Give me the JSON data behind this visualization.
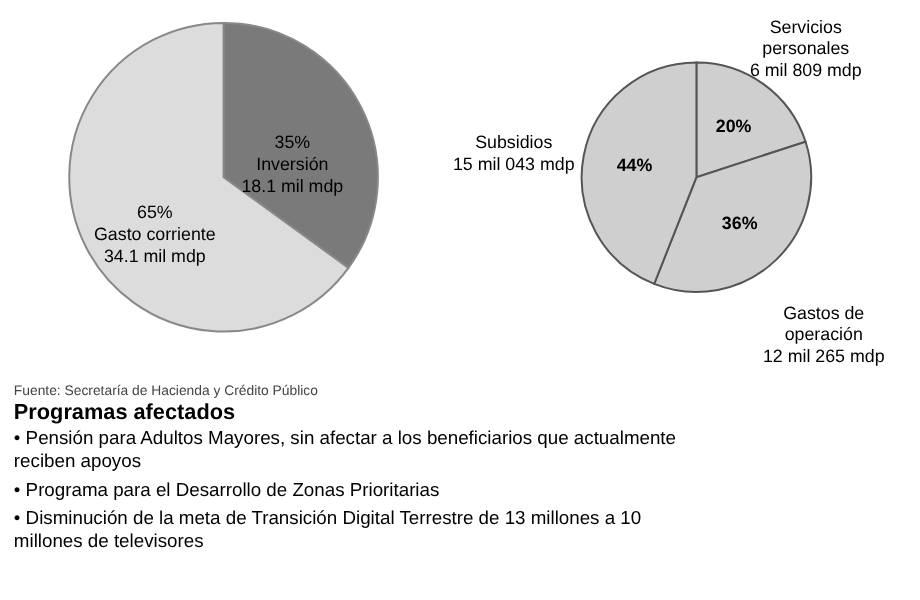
{
  "chart_data": [
    {
      "type": "pie",
      "categories": [
        "Inversión",
        "Gasto corriente"
      ],
      "values": [
        35,
        65
      ],
      "colors": [
        "#7a7a7a",
        "#dcdcdc"
      ],
      "value_labels": [
        "35%",
        "65%"
      ],
      "annotations": [
        "18.1 mil mdp",
        "34.1 mil mdp"
      ]
    },
    {
      "type": "pie",
      "categories": [
        "Servicios personales",
        "Gastos de operación",
        "Subsidios"
      ],
      "values": [
        20,
        36,
        44
      ],
      "colors": [
        "#cfcfcf",
        "#cfcfcf",
        "#cfcfcf"
      ],
      "value_labels": [
        "20%",
        "36%",
        "44%"
      ],
      "annotations": [
        "6 mil 809 mdp",
        "12 mil 265 mdp",
        "15 mil 043 mdp"
      ]
    },
    {
      "type": "other",
      "title": "Programas afectados",
      "annotations": [
        "Fuente: Secretaría de Hacienda y Crédito Público",
        "• Pensión para Adultos Mayores, sin afectar a los beneficiarios que actualmente reciben apoyos",
        "• Programa para el Desarrollo de Zonas Prioritarias",
        "• Disminución de la meta de Transición Digital Terrestre de 13 millones a 10 millones de televisores"
      ]
    }
  ]
}
